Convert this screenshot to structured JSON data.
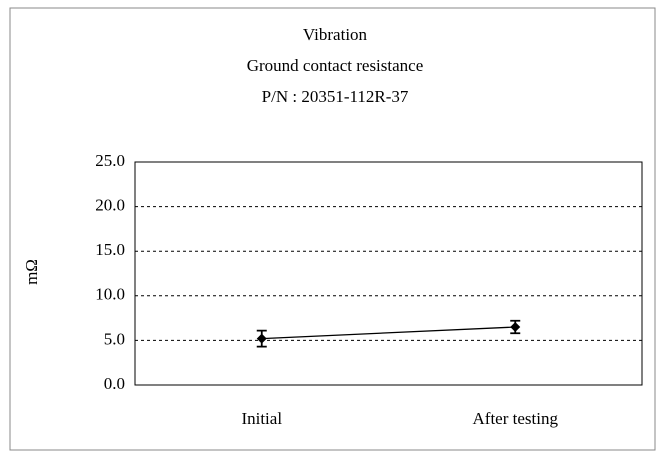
{
  "chart_data": {
    "type": "line",
    "title": [
      "Vibration",
      "Ground contact resistance",
      "P/N : 20351-112R-37"
    ],
    "y_label": "mΩ",
    "categories": [
      "Initial",
      "After testing"
    ],
    "series": [
      {
        "color": "#000000",
        "values": [
          5.2,
          6.5
        ],
        "errors": [
          0.9,
          0.7
        ]
      }
    ],
    "ylim": [
      0,
      25
    ],
    "yticks": [
      {
        "value": 0,
        "label": "0.0"
      },
      {
        "value": 5,
        "label": "5.0"
      },
      {
        "value": 10,
        "label": "10.0"
      },
      {
        "value": 15,
        "label": "15.0"
      },
      {
        "value": 20,
        "label": "20.0"
      },
      {
        "value": 25,
        "label": "25.0"
      }
    ],
    "grid": true
  }
}
